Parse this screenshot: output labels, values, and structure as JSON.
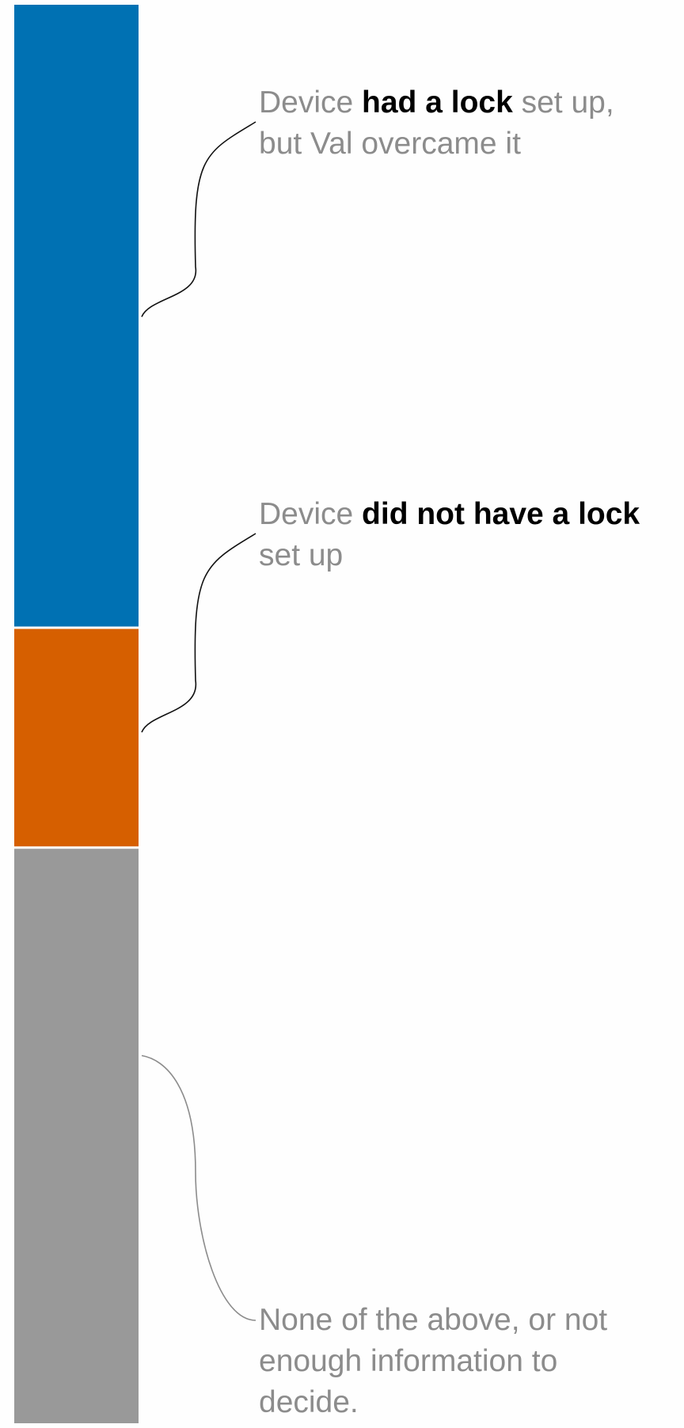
{
  "chart_data": {
    "type": "bar",
    "stacked": true,
    "orientation": "vertical",
    "grid": false,
    "legend": "none",
    "segments": [
      {
        "value": 44,
        "color": "#0071b3",
        "label_prefix": "Device ",
        "label_bold": "had a lock",
        "label_suffix_line1": " set up,",
        "label_line2": "but Val overcame it"
      },
      {
        "value": 15.5,
        "color": "#d65f00",
        "label_prefix": "Device ",
        "label_bold": "did not have a lock",
        "label_suffix_line1": "",
        "label_line2": "set up"
      },
      {
        "value": 40.5,
        "color": "#999999",
        "label_line1": "None of the above, or not",
        "label_line2": "enough information to",
        "label_line3": "decide."
      }
    ]
  }
}
